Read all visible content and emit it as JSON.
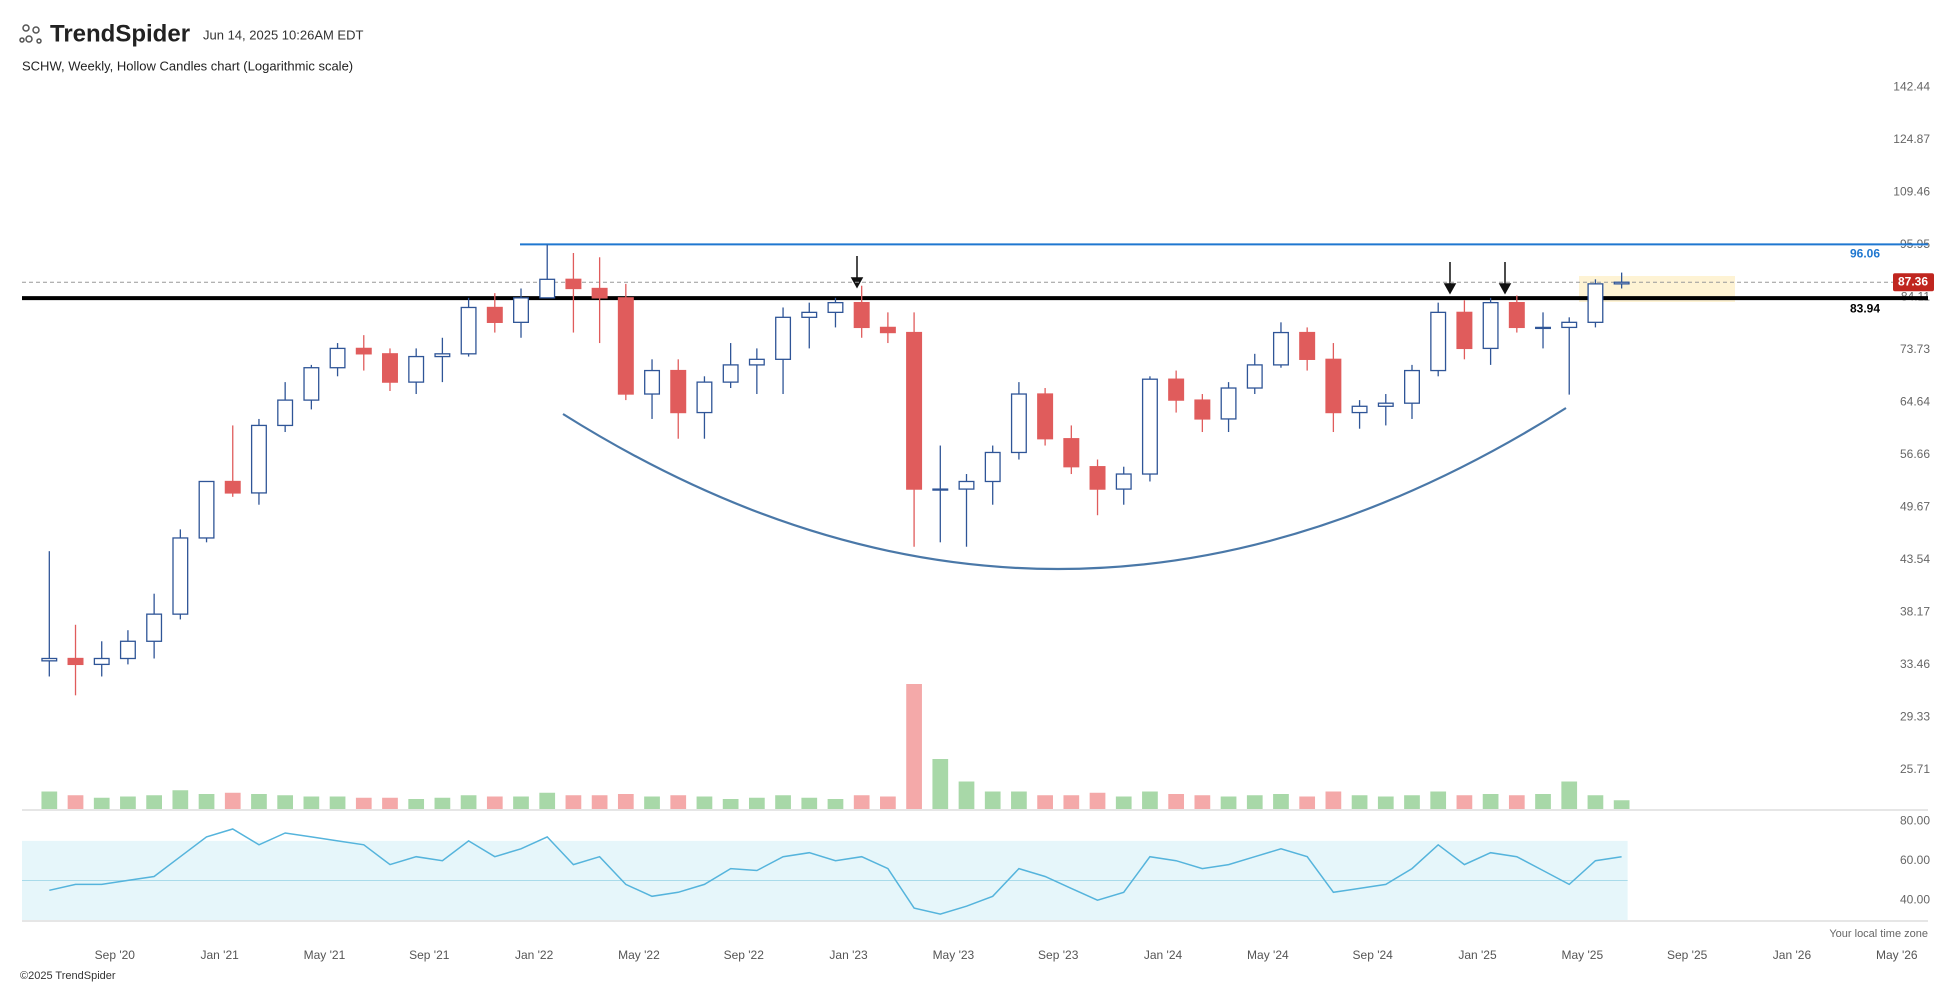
{
  "header": {
    "logo": "TrendSpider",
    "timestamp": "Jun 14, 2025 10:26AM EDT"
  },
  "footer": "©2025 TrendSpider",
  "timezone_note": "Your local time zone",
  "chart_data": [
    {
      "type": "candlestick",
      "title": "SCHW, Weekly, Hollow Candles chart (Logarithmic scale)",
      "log": true,
      "grid": false,
      "up_color": "#2f5597",
      "down_color": "#e05c5c",
      "x": [
        "2020-06",
        "2020-07",
        "2020-08",
        "2020-09",
        "2020-10",
        "2020-11",
        "2020-12",
        "2021-01",
        "2021-02",
        "2021-03",
        "2021-04",
        "2021-05",
        "2021-06",
        "2021-07",
        "2021-08",
        "2021-09",
        "2021-10",
        "2021-11",
        "2021-12",
        "2022-01",
        "2022-02",
        "2022-03",
        "2022-04",
        "2022-05",
        "2022-06",
        "2022-07",
        "2022-08",
        "2022-09",
        "2022-10",
        "2022-11",
        "2022-12",
        "2023-01",
        "2023-02",
        "2023-03",
        "2023-04",
        "2023-05",
        "2023-06",
        "2023-07",
        "2023-08",
        "2023-09",
        "2023-10",
        "2023-11",
        "2023-12",
        "2024-01",
        "2024-02",
        "2024-03",
        "2024-04",
        "2024-05",
        "2024-06",
        "2024-07",
        "2024-08",
        "2024-09",
        "2024-10",
        "2024-11",
        "2024-12",
        "2025-01",
        "2025-02",
        "2025-03",
        "2025-04",
        "2025-05",
        "2025-06"
      ],
      "open": [
        33.8,
        34,
        33.5,
        34,
        35.5,
        38,
        46,
        53,
        51.5,
        61,
        65,
        70.5,
        74,
        73,
        68,
        72.5,
        73,
        82,
        79,
        84,
        88,
        86,
        84,
        66,
        70,
        63,
        68,
        71,
        72,
        80,
        81,
        83,
        78,
        77,
        52,
        52,
        53,
        57,
        66,
        59,
        55,
        52,
        54,
        68.5,
        65,
        62,
        67,
        71,
        77,
        72,
        63,
        64,
        64.5,
        70,
        81,
        74,
        83,
        78,
        78,
        79,
        87
      ],
      "high": [
        44.5,
        37,
        35.5,
        36.5,
        40,
        47,
        53,
        61,
        62,
        68,
        71,
        75,
        76.5,
        74,
        74,
        76,
        84,
        85,
        86,
        96,
        94,
        93,
        87,
        72,
        72,
        69,
        75,
        74,
        82,
        83,
        84,
        86.6,
        81,
        81,
        58,
        54,
        58,
        68,
        67,
        61,
        56,
        55,
        69,
        70,
        66,
        68,
        73,
        79,
        78,
        75,
        65,
        66,
        71,
        83,
        83.5,
        84,
        84.5,
        81,
        80,
        88,
        89.5
      ],
      "low": [
        32.5,
        31,
        32.5,
        33.5,
        34,
        37.5,
        45.5,
        51,
        50,
        60,
        63.5,
        69,
        70,
        66.5,
        66,
        68,
        72.5,
        77,
        76,
        84,
        77,
        75,
        65,
        62,
        59,
        59,
        67,
        66,
        66,
        74,
        78,
        76,
        75,
        45,
        45.5,
        45,
        50,
        56,
        58,
        54,
        48.7,
        50,
        53,
        63,
        60,
        60,
        66,
        70.5,
        70,
        60,
        60.5,
        61,
        62,
        69,
        72,
        71,
        77,
        74,
        65.9,
        78,
        86
      ],
      "close": [
        34,
        33.5,
        34,
        35.5,
        38,
        46,
        53,
        51.5,
        61,
        65,
        70.5,
        74,
        73,
        68,
        72.5,
        73,
        82,
        79,
        84,
        88,
        86,
        84,
        66,
        70,
        63,
        68,
        71,
        72,
        80,
        81,
        83,
        78,
        77,
        52,
        52,
        53,
        57,
        66,
        59,
        55,
        52,
        54,
        68.5,
        65,
        62,
        67,
        71,
        77,
        72,
        63,
        64,
        64.5,
        70,
        81,
        74,
        83,
        78,
        78,
        79,
        87,
        87.36
      ],
      "ylim": [
        23.31,
        146.9
      ],
      "yticks": [
        142.44,
        124.87,
        109.46,
        95.95,
        84.11,
        73.73,
        64.64,
        56.66,
        49.67,
        43.54,
        38.17,
        33.46,
        29.33,
        25.71
      ],
      "lines": [
        {
          "value": 96.06,
          "color": "#1f77d0"
        },
        {
          "value": 83.94,
          "color": "#000000"
        }
      ],
      "last_price": 87.36,
      "last_price_color": "#c0261f"
    },
    {
      "type": "bar",
      "up_color": "#a8d8a8",
      "down_color": "#f4a9a9",
      "x": [
        "2020-06",
        "2020-07",
        "2020-08",
        "2020-09",
        "2020-10",
        "2020-11",
        "2020-12",
        "2021-01",
        "2021-02",
        "2021-03",
        "2021-04",
        "2021-05",
        "2021-06",
        "2021-07",
        "2021-08",
        "2021-09",
        "2021-10",
        "2021-11",
        "2021-12",
        "2022-01",
        "2022-02",
        "2022-03",
        "2022-04",
        "2022-05",
        "2022-06",
        "2022-07",
        "2022-08",
        "2022-09",
        "2022-10",
        "2022-11",
        "2022-12",
        "2023-01",
        "2023-02",
        "2023-03",
        "2023-04",
        "2023-05",
        "2023-06",
        "2023-07",
        "2023-08",
        "2023-09",
        "2023-10",
        "2023-11",
        "2023-12",
        "2024-01",
        "2024-02",
        "2024-03",
        "2024-04",
        "2024-05",
        "2024-06",
        "2024-07",
        "2024-08",
        "2024-09",
        "2024-10",
        "2024-11",
        "2024-12",
        "2025-01",
        "2025-02",
        "2025-03",
        "2025-04",
        "2025-05",
        "2025-06"
      ],
      "values": [
        70,
        55,
        45,
        50,
        55,
        75,
        60,
        65,
        60,
        55,
        50,
        50,
        45,
        45,
        40,
        45,
        55,
        50,
        50,
        65,
        55,
        55,
        60,
        50,
        55,
        50,
        40,
        45,
        55,
        45,
        40,
        55,
        50,
        500,
        200,
        110,
        70,
        70,
        55,
        55,
        65,
        50,
        70,
        60,
        55,
        50,
        55,
        60,
        50,
        70,
        55,
        50,
        55,
        70,
        55,
        60,
        55,
        60,
        110,
        55,
        35
      ]
    },
    {
      "type": "line",
      "color": "#55b4dc",
      "band": [
        30,
        70
      ],
      "band_color": "#e6f6fa",
      "midline": 50,
      "x": [
        "2020-06",
        "2020-07",
        "2020-08",
        "2020-09",
        "2020-10",
        "2020-11",
        "2020-12",
        "2021-01",
        "2021-02",
        "2021-03",
        "2021-04",
        "2021-05",
        "2021-06",
        "2021-07",
        "2021-08",
        "2021-09",
        "2021-10",
        "2021-11",
        "2021-12",
        "2022-01",
        "2022-02",
        "2022-03",
        "2022-04",
        "2022-05",
        "2022-06",
        "2022-07",
        "2022-08",
        "2022-09",
        "2022-10",
        "2022-11",
        "2022-12",
        "2023-01",
        "2023-02",
        "2023-03",
        "2023-04",
        "2023-05",
        "2023-06",
        "2023-07",
        "2023-08",
        "2023-09",
        "2023-10",
        "2023-11",
        "2023-12",
        "2024-01",
        "2024-02",
        "2024-03",
        "2024-04",
        "2024-05",
        "2024-06",
        "2024-07",
        "2024-08",
        "2024-09",
        "2024-10",
        "2024-11",
        "2024-12",
        "2025-01",
        "2025-02",
        "2025-03",
        "2025-04",
        "2025-05",
        "2025-06"
      ],
      "values": [
        45,
        48,
        48,
        50,
        52,
        62,
        72,
        76,
        68,
        74,
        72,
        70,
        68,
        58,
        62,
        60,
        70,
        62,
        66,
        72,
        58,
        62,
        48,
        42,
        44,
        48,
        56,
        55,
        62,
        64,
        60,
        62,
        56,
        36,
        33,
        37,
        42,
        56,
        52,
        46,
        40,
        44,
        62,
        60,
        56,
        58,
        62,
        66,
        62,
        44,
        46,
        48,
        56,
        68,
        58,
        64,
        62,
        55,
        48,
        60,
        62
      ],
      "ylim": [
        30,
        84.6
      ],
      "yticks": [
        {
          "value": 80,
          "label": "80.00"
        },
        {
          "value": 60,
          "label": "60.00"
        },
        {
          "value": 40,
          "label": "40.00"
        }
      ],
      "xlim": [
        "2020-05",
        "2026-06"
      ],
      "xticks": [
        {
          "value": "2020-09",
          "label": "Sep '20"
        },
        {
          "value": "2021-01",
          "label": "Jan '21"
        },
        {
          "value": "2021-05",
          "label": "May '21"
        },
        {
          "value": "2021-09",
          "label": "Sep '21"
        },
        {
          "value": "2022-01",
          "label": "Jan '22"
        },
        {
          "value": "2022-05",
          "label": "May '22"
        },
        {
          "value": "2022-09",
          "label": "Sep '22"
        },
        {
          "value": "2023-01",
          "label": "Jan '23"
        },
        {
          "value": "2023-05",
          "label": "May '23"
        },
        {
          "value": "2023-09",
          "label": "Sep '23"
        },
        {
          "value": "2024-01",
          "label": "Jan '24"
        },
        {
          "value": "2024-05",
          "label": "May '24"
        },
        {
          "value": "2024-09",
          "label": "Sep '24"
        },
        {
          "value": "2025-01",
          "label": "Jan '25"
        },
        {
          "value": "2025-05",
          "label": "May '25"
        },
        {
          "value": "2025-09",
          "label": "Sep '25"
        },
        {
          "value": "2026-01",
          "label": "Jan '26"
        },
        {
          "value": "2026-05",
          "label": "May '26"
        }
      ]
    }
  ]
}
